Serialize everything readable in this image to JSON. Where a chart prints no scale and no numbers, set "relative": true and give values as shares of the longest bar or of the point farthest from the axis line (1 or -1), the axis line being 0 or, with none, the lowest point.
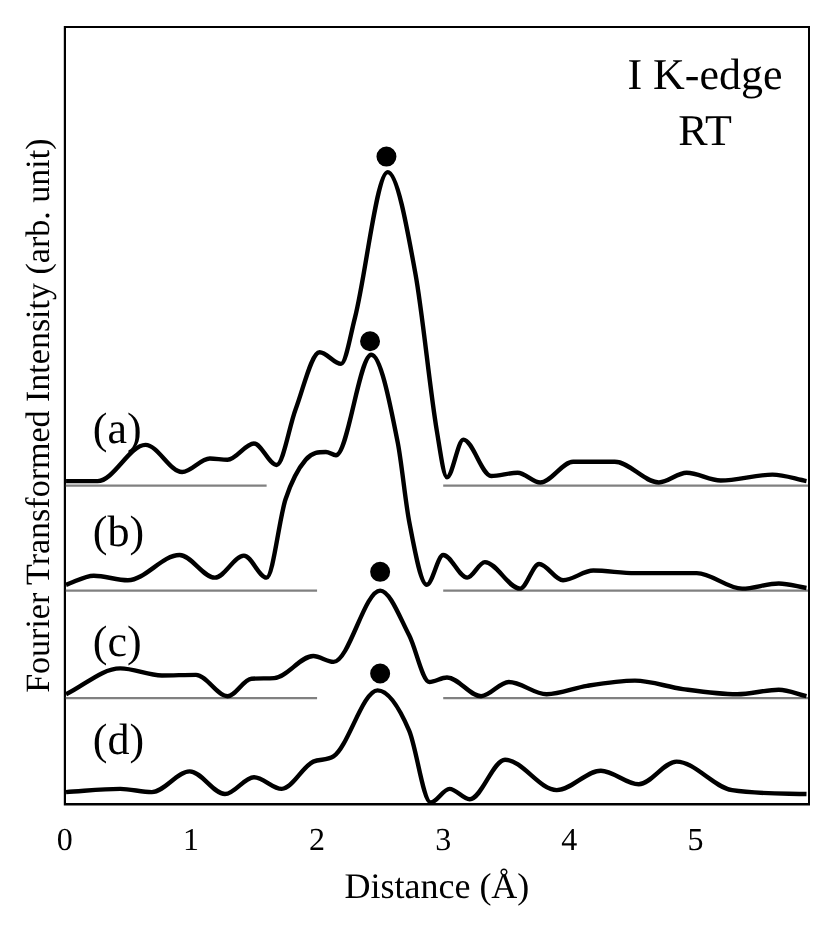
{
  "chart_data": {
    "type": "line",
    "relative": true,
    "xlabel": "Distance (Å)",
    "ylabel": "Fourier Transformed Intensity (arb. unit)",
    "xlim": [
      0,
      5.9
    ],
    "xticks": [
      0,
      1,
      2,
      3,
      4,
      5
    ],
    "grid": false,
    "legend": false,
    "marker": "none",
    "line_style": "solid",
    "annotations": [
      "I K-edge",
      "RT",
      "(a)",
      "(b)",
      "(c)",
      "(d)"
    ],
    "series": [
      {
        "type": "line",
        "color": "#000000",
        "x": [
          0.01,
          0.26,
          0.64,
          0.93,
          1.15,
          1.29,
          1.5,
          1.68,
          1.83,
          2.02,
          2.19,
          2.3,
          2.56,
          2.78,
          2.95,
          3.03,
          3.16,
          3.38,
          3.59,
          3.77,
          4.03,
          4.36,
          4.71,
          4.93,
          5.2,
          5.61,
          5.88
        ],
        "values": [
          0.499,
          0.499,
          0.555,
          0.513,
          0.534,
          0.532,
          0.557,
          0.524,
          0.61,
          0.698,
          0.68,
          0.751,
          0.976,
          0.819,
          0.576,
          0.505,
          0.563,
          0.507,
          0.512,
          0.497,
          0.529,
          0.529,
          0.497,
          0.512,
          0.5,
          0.509,
          0.499
        ]
      },
      {
        "type": "line",
        "color": "#000000",
        "x": [
          0.01,
          0.23,
          0.5,
          0.91,
          1.19,
          1.42,
          1.6,
          1.75,
          1.91,
          2.07,
          2.15,
          2.43,
          2.64,
          2.73,
          2.87,
          3.0,
          3.19,
          3.33,
          3.61,
          3.76,
          3.95,
          4.19,
          4.52,
          5.01,
          5.37,
          5.66,
          5.88
        ],
        "values": [
          0.339,
          0.353,
          0.346,
          0.385,
          0.35,
          0.384,
          0.35,
          0.471,
          0.532,
          0.544,
          0.539,
          0.694,
          0.558,
          0.437,
          0.339,
          0.385,
          0.35,
          0.374,
          0.333,
          0.371,
          0.346,
          0.361,
          0.357,
          0.357,
          0.333,
          0.341,
          0.334
        ]
      },
      {
        "type": "line",
        "color": "#000000",
        "x": [
          0.01,
          0.44,
          0.77,
          1.04,
          1.29,
          1.48,
          1.66,
          1.97,
          2.13,
          2.5,
          2.73,
          2.89,
          3.03,
          3.3,
          3.52,
          3.82,
          4.14,
          4.52,
          4.9,
          5.33,
          5.66,
          5.88
        ],
        "values": [
          0.17,
          0.21,
          0.199,
          0.2,
          0.167,
          0.194,
          0.195,
          0.229,
          0.22,
          0.33,
          0.261,
          0.189,
          0.196,
          0.167,
          0.189,
          0.17,
          0.183,
          0.191,
          0.178,
          0.17,
          0.177,
          0.167
        ]
      },
      {
        "type": "line",
        "color": "#000000",
        "x": [
          0.01,
          0.44,
          0.69,
          0.99,
          1.27,
          1.5,
          1.72,
          1.97,
          2.13,
          2.48,
          2.73,
          2.9,
          3.05,
          3.21,
          3.49,
          3.9,
          4.25,
          4.55,
          4.85,
          5.29,
          5.88
        ],
        "values": [
          0.019,
          0.024,
          0.019,
          0.051,
          0.016,
          0.042,
          0.024,
          0.066,
          0.074,
          0.176,
          0.114,
          0.003,
          0.024,
          0.008,
          0.069,
          0.022,
          0.052,
          0.031,
          0.066,
          0.022,
          0.016
        ]
      },
      {
        "type": "line",
        "color": "#808080",
        "x": [
          0,
          1.6
        ],
        "values": [
          0.492,
          0.492
        ]
      },
      {
        "type": "line",
        "color": "#808080",
        "x": [
          3,
          5.9
        ],
        "values": [
          0.492,
          0.492
        ]
      },
      {
        "type": "line",
        "color": "#808080",
        "x": [
          0,
          2
        ],
        "values": [
          0.33,
          0.33
        ]
      },
      {
        "type": "line",
        "color": "#808080",
        "x": [
          3,
          5.9
        ],
        "values": [
          0.33,
          0.33
        ]
      },
      {
        "type": "line",
        "color": "#808080",
        "x": [
          0,
          2
        ],
        "values": [
          0.164,
          0.164
        ]
      },
      {
        "type": "line",
        "color": "#808080",
        "x": [
          3,
          5.9
        ],
        "values": [
          0.164,
          0.164
        ]
      },
      {
        "type": "scatter",
        "marker": "circle",
        "color": "#000000",
        "x": [
          2.55,
          2.42,
          2.5,
          2.5
        ],
        "values": [
          1,
          0.715,
          0.359,
          0.202
        ]
      }
    ]
  }
}
